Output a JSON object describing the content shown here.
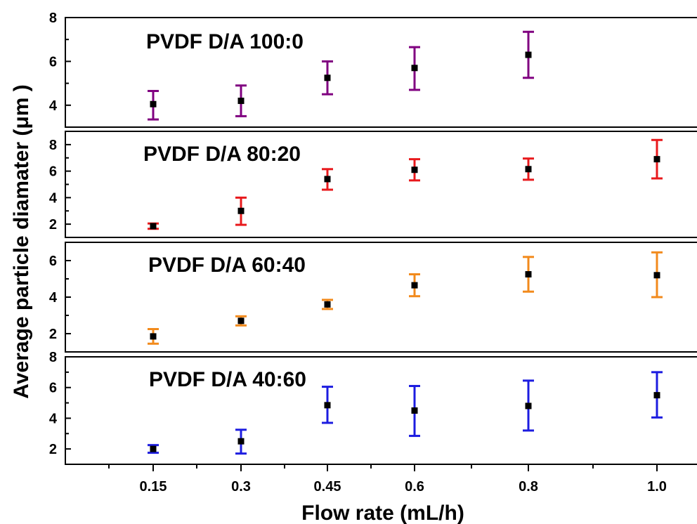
{
  "chart_data": {
    "type": "scatter",
    "xlabel": "Flow rate (mL/h)",
    "ylabel": "Average particle diamater (μm )",
    "x_tick_labels": [
      "0.15",
      "0.3",
      "0.45",
      "0.6",
      "0.8",
      "1.0"
    ],
    "panels": [
      {
        "label": "PVDF D/A 100:0",
        "color": "#800080",
        "ylim": [
          3,
          8
        ],
        "yticks": [
          4,
          6,
          8
        ],
        "x": [
          0.15,
          0.3,
          0.45,
          0.6,
          0.8
        ],
        "values": [
          4.05,
          4.2,
          5.25,
          5.7,
          6.3
        ],
        "err_low": [
          3.35,
          3.5,
          4.5,
          4.7,
          5.25
        ],
        "err_high": [
          4.65,
          4.9,
          6.0,
          6.65,
          7.35
        ]
      },
      {
        "label": "PVDF D/A 80:20",
        "color": "#e8191c",
        "ylim": [
          1,
          9
        ],
        "yticks": [
          2,
          4,
          6,
          8
        ],
        "x": [
          0.15,
          0.3,
          0.45,
          0.6,
          0.8,
          1.0
        ],
        "values": [
          1.85,
          3.0,
          5.4,
          6.1,
          6.15,
          6.9
        ],
        "err_low": [
          1.65,
          1.95,
          4.6,
          5.3,
          5.35,
          5.45
        ],
        "err_high": [
          2.05,
          4.0,
          6.15,
          6.9,
          6.95,
          8.35
        ]
      },
      {
        "label": "PVDF D/A 60:40",
        "color": "#f28a1c",
        "ylim": [
          1,
          7
        ],
        "yticks": [
          2,
          4,
          6
        ],
        "x": [
          0.15,
          0.3,
          0.45,
          0.6,
          0.8,
          1.0
        ],
        "values": [
          1.85,
          2.7,
          3.6,
          4.65,
          5.25,
          5.2
        ],
        "err_low": [
          1.45,
          2.45,
          3.35,
          4.05,
          4.3,
          4.0
        ],
        "err_high": [
          2.25,
          2.95,
          3.85,
          5.25,
          6.2,
          6.45
        ]
      },
      {
        "label": "PVDF D/A 40:60",
        "color": "#1c1ce0",
        "ylim": [
          1,
          8
        ],
        "yticks": [
          2,
          4,
          6,
          8
        ],
        "x": [
          0.15,
          0.3,
          0.45,
          0.6,
          0.8,
          1.0
        ],
        "values": [
          2.0,
          2.5,
          4.85,
          4.5,
          4.8,
          5.5
        ],
        "err_low": [
          1.75,
          1.7,
          3.7,
          2.85,
          3.2,
          4.05
        ],
        "err_high": [
          2.25,
          3.25,
          6.05,
          6.1,
          6.45,
          7.0
        ]
      }
    ]
  }
}
